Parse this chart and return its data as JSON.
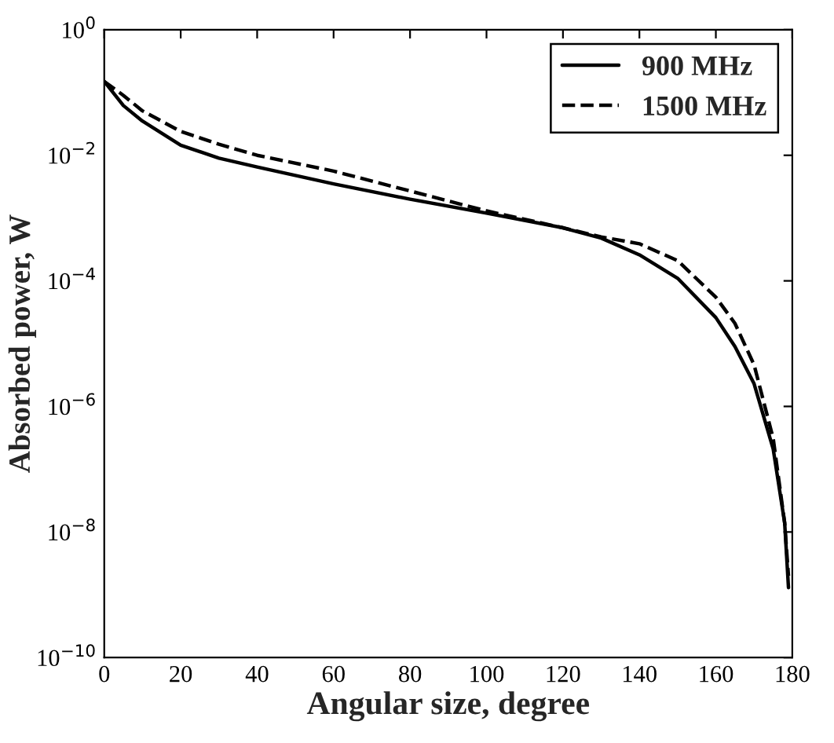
{
  "chart_data": {
    "type": "line",
    "xlabel": "Angular size, degree",
    "ylabel": "Absorbed power, W",
    "log": "y",
    "xlim": [
      0,
      180
    ],
    "xticks": [
      0,
      20,
      40,
      60,
      80,
      100,
      120,
      140,
      160,
      180
    ],
    "ylim": [
      1e-10,
      1
    ],
    "yticks": [
      {
        "value": 1e-10,
        "label": "10$^{−10}$"
      },
      {
        "value": 1e-08,
        "label": "10$^{−8}$"
      },
      {
        "value": 1e-06,
        "label": "10$^{−6}$"
      },
      {
        "value": 0.0001,
        "label": "10$^{−4}$"
      },
      {
        "value": 0.01,
        "label": "10$^{−2}$"
      },
      {
        "value": 1,
        "label": "10$^{0}$"
      }
    ],
    "grid": false,
    "legend": "top right",
    "x": [
      0,
      5,
      10,
      20,
      30,
      40,
      60,
      80,
      100,
      120,
      130,
      140,
      150,
      160,
      165,
      170,
      175,
      178,
      179
    ],
    "series": [
      {
        "name": "900 MHz",
        "color": "#000000",
        "line_style": "solid",
        "values": [
          0.15,
          0.062,
          0.035,
          0.0145,
          0.009,
          0.0065,
          0.0035,
          0.002,
          0.0012,
          0.0007,
          0.00048,
          0.00026,
          0.00011,
          2.6e-05,
          9e-06,
          2.3e-06,
          2.1e-07,
          1.4e-08,
          1.3e-09
        ]
      },
      {
        "name": "1500 MHz",
        "color": "#000000",
        "line_style": "dashed",
        "values": [
          0.15,
          0.09,
          0.051,
          0.024,
          0.015,
          0.01,
          0.0056,
          0.0027,
          0.0013,
          0.0007,
          0.0005,
          0.00039,
          0.00021,
          5.5e-05,
          2.1e-05,
          4.6e-06,
          3.1e-07,
          1.4e-08,
          2e-09
        ]
      }
    ]
  }
}
